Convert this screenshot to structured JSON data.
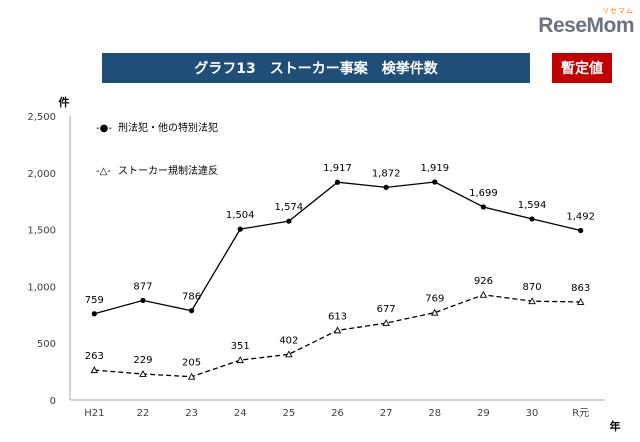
{
  "branding": {
    "sub": "リセマム",
    "logo": "ReseMom"
  },
  "header": {
    "title": "グラフ13　ストーカー事案　検挙件数",
    "badge": "暫定値"
  },
  "colors": {
    "title_bg": "#1f4e79",
    "badge_bg": "#c00000",
    "series_color": "#000000"
  },
  "chart_data": {
    "type": "line",
    "xlabel": "年",
    "ylabel": "件",
    "categories": [
      "H21",
      "22",
      "23",
      "24",
      "25",
      "26",
      "27",
      "28",
      "29",
      "30",
      "R元"
    ],
    "ylim": [
      0,
      2500
    ],
    "yticks": [
      0,
      500,
      1000,
      1500,
      2000,
      2500
    ],
    "ytick_labels": [
      "0",
      "500",
      "1,000",
      "1,500",
      "2,000",
      "2,500"
    ],
    "grid": false,
    "legend_position": "top-left",
    "series": [
      {
        "name": "刑法犯・他の特別法犯",
        "legend_marker": "-●-",
        "style": "solid",
        "marker": "filled-circle",
        "values": [
          759,
          877,
          786,
          1504,
          1574,
          1917,
          1872,
          1919,
          1699,
          1594,
          1492
        ],
        "labels": [
          "759",
          "877",
          "786",
          "1,504",
          "1,574",
          "1,917",
          "1,872",
          "1,919",
          "1,699",
          "1,594",
          "1,492"
        ]
      },
      {
        "name": "ストーカー規制法違反",
        "legend_marker": "-△-",
        "style": "dashed",
        "marker": "open-triangle",
        "values": [
          263,
          229,
          205,
          351,
          402,
          613,
          677,
          769,
          926,
          870,
          863
        ],
        "labels": [
          "263",
          "229",
          "205",
          "351",
          "402",
          "613",
          "677",
          "769",
          "926",
          "870",
          "863"
        ]
      }
    ]
  }
}
